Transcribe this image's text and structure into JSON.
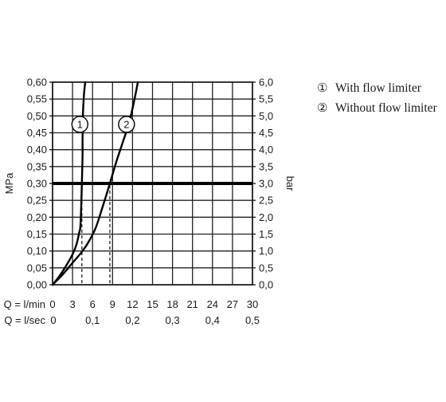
{
  "chart_data": {
    "type": "line",
    "title": "",
    "ylabel_left": "MPa",
    "ylabel_right": "bar",
    "ylim": [
      0,
      0.6
    ],
    "y_ticks_left": [
      "0,00",
      "0,05",
      "0,10",
      "0,15",
      "0,20",
      "0,25",
      "0,30",
      "0,35",
      "0,40",
      "0,45",
      "0,50",
      "0,55",
      "0,60"
    ],
    "y_ticks_right": [
      "0,0",
      "0,5",
      "1,0",
      "1,5",
      "2,0",
      "2,5",
      "3,0",
      "3,5",
      "4,0",
      "4,5",
      "5,0",
      "5,5",
      "6,0"
    ],
    "xlim": [
      0,
      30
    ],
    "x_axis_lmin": {
      "label": "Q = l/min",
      "ticks": [
        "0",
        "3",
        "6",
        "9",
        "12",
        "15",
        "18",
        "21",
        "24",
        "27",
        "30"
      ],
      "values": [
        0,
        3,
        6,
        9,
        12,
        15,
        18,
        21,
        24,
        27,
        30
      ]
    },
    "x_axis_lsec": {
      "label": "Q = l/sec",
      "ticks": [
        "0",
        "0,1",
        "0,2",
        "0,3",
        "0,4",
        "0,5"
      ],
      "values_lmin": [
        0,
        6,
        12,
        18,
        24,
        30
      ]
    },
    "grid": true,
    "reference_line": {
      "y": 0.3,
      "label": "3,0"
    },
    "drop_lines": [
      {
        "series": 1,
        "x": 4.4,
        "y": 0.3
      },
      {
        "series": 2,
        "x": 8.6,
        "y": 0.3
      }
    ],
    "series": [
      {
        "name": "With flow limiter",
        "marker_label": "1",
        "x": [
          0,
          1.0,
          2.0,
          3.0,
          3.6,
          4.0,
          4.2,
          4.4,
          4.5,
          4.5,
          4.55,
          4.7,
          4.9
        ],
        "y": [
          0,
          0.025,
          0.055,
          0.09,
          0.12,
          0.155,
          0.18,
          0.3,
          0.38,
          0.43,
          0.5,
          0.56,
          0.6
        ]
      },
      {
        "name": "Without flow limiter",
        "marker_label": "2",
        "x": [
          0,
          1.5,
          3.0,
          4.5,
          5.5,
          6.5,
          7.5,
          8.6,
          9.5,
          10.5,
          11.5,
          12.3,
          12.8
        ],
        "y": [
          0,
          0.03,
          0.065,
          0.1,
          0.13,
          0.17,
          0.23,
          0.3,
          0.36,
          0.42,
          0.48,
          0.55,
          0.6
        ]
      }
    ],
    "annotations": [
      {
        "marker": "1",
        "x": 4.1,
        "y": 0.475
      },
      {
        "marker": "2",
        "x": 11.1,
        "y": 0.475
      }
    ]
  },
  "legend": {
    "items": [
      {
        "num": "①",
        "text": "With flow limiter"
      },
      {
        "num": "②",
        "text": "Without flow limiter"
      }
    ]
  }
}
